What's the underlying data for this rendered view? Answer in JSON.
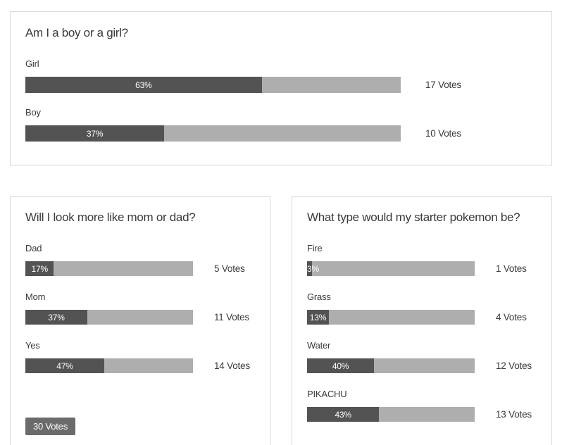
{
  "colors": {
    "card-border": "#d8d8d8",
    "bar-fill": "#535353",
    "bar-track": "#aeaeae",
    "badge-bg": "#6b6b6b",
    "text": "#3a3a3a",
    "accent-border": "#151515",
    "pct-text": "#ffffff"
  },
  "polls": [
    {
      "question": "Am I a boy or a girl?",
      "options": [
        {
          "label": "Girl",
          "pct": 63,
          "pct_label": "63%",
          "votes_label": "17 Votes"
        },
        {
          "label": "Boy",
          "pct": 37,
          "pct_label": "37%",
          "votes_label": "10 Votes"
        }
      ]
    },
    {
      "question": "Will I look more like mom or dad?",
      "options": [
        {
          "label": "Dad",
          "pct": 17,
          "pct_label": "17%",
          "votes_label": "5 Votes"
        },
        {
          "label": "Mom",
          "pct": 37,
          "pct_label": "37%",
          "votes_label": "11 Votes"
        },
        {
          "label": "Yes",
          "pct": 47,
          "pct_label": "47%",
          "votes_label": "14 Votes"
        }
      ],
      "total_votes_label": "30 Votes"
    },
    {
      "question": "What type would my starter pokemon be?",
      "options": [
        {
          "label": "Fire",
          "pct": 3,
          "pct_label": "3%",
          "votes_label": "1 Votes"
        },
        {
          "label": "Grass",
          "pct": 13,
          "pct_label": "13%",
          "votes_label": "4 Votes"
        },
        {
          "label": "Water",
          "pct": 40,
          "pct_label": "40%",
          "votes_label": "12 Votes"
        },
        {
          "label": "PIKACHU",
          "pct": 43,
          "pct_label": "43%",
          "votes_label": "13 Votes"
        }
      ]
    }
  ],
  "chart_data": [
    {
      "type": "bar",
      "title": "Am I a boy or a girl?",
      "categories": [
        "Girl",
        "Boy"
      ],
      "values": [
        63,
        37
      ],
      "value_unit": "%",
      "vote_counts": [
        17,
        10
      ],
      "xlabel": "",
      "ylabel": "",
      "xlim": [
        0,
        100
      ],
      "orientation": "horizontal",
      "grid": false,
      "legend": false
    },
    {
      "type": "bar",
      "title": "Will I look more like mom or dad?",
      "categories": [
        "Dad",
        "Mom",
        "Yes"
      ],
      "values": [
        17,
        37,
        47
      ],
      "value_unit": "%",
      "vote_counts": [
        5,
        11,
        14
      ],
      "total_votes": 30,
      "xlabel": "",
      "ylabel": "",
      "xlim": [
        0,
        100
      ],
      "orientation": "horizontal",
      "grid": false,
      "legend": false
    },
    {
      "type": "bar",
      "title": "What type would my starter pokemon be?",
      "categories": [
        "Fire",
        "Grass",
        "Water",
        "PIKACHU"
      ],
      "values": [
        3,
        13,
        40,
        43
      ],
      "value_unit": "%",
      "vote_counts": [
        1,
        4,
        12,
        13
      ],
      "xlabel": "",
      "ylabel": "",
      "xlim": [
        0,
        100
      ],
      "orientation": "horizontal",
      "grid": false,
      "legend": false
    }
  ]
}
